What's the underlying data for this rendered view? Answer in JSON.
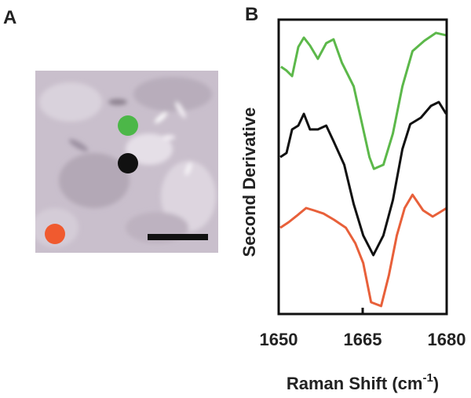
{
  "chart_data": {
    "type": "line",
    "panel_labels": [
      "A",
      "B"
    ],
    "x_label": {
      "main": "Raman Shift (cm",
      "sup": "-1",
      "end": ")"
    },
    "y_label": "Second Derivative",
    "xlim": [
      1650,
      1680
    ],
    "xticks": [
      1650,
      1665,
      1680
    ],
    "ylim": [
      0,
      100
    ],
    "series": [
      {
        "color": "#5cb84a",
        "x": [
          1650.4,
          1651.4,
          1652.4,
          1653.5,
          1654.5,
          1655.6,
          1657.0,
          1658.5,
          1659.8,
          1661.3,
          1663.4,
          1664.8,
          1666.2,
          1667.0,
          1668.7,
          1670.4,
          1672.1,
          1673.9,
          1676.0,
          1678.1,
          1679.9
        ],
        "values": [
          84.0,
          82.7,
          80.8,
          90.7,
          93.9,
          91.2,
          86.7,
          92.0,
          93.3,
          85.3,
          77.3,
          65.3,
          53.3,
          49.3,
          50.7,
          61.3,
          77.3,
          89.3,
          92.8,
          95.5,
          94.7
        ]
      },
      {
        "color": "#111111",
        "x": [
          1650.3,
          1651.4,
          1652.4,
          1653.5,
          1654.5,
          1655.6,
          1657.0,
          1658.5,
          1659.8,
          1661.7,
          1663.4,
          1665.1,
          1666.9,
          1668.7,
          1670.4,
          1672.1,
          1673.5,
          1675.4,
          1677.2,
          1678.6,
          1679.9
        ],
        "values": [
          53.3,
          54.7,
          62.7,
          64.0,
          68.0,
          62.7,
          62.7,
          64.0,
          58.7,
          50.7,
          37.3,
          26.7,
          20.0,
          26.7,
          38.7,
          56.0,
          64.5,
          66.7,
          70.7,
          72.0,
          68.0
        ]
      },
      {
        "color": "#e8603a",
        "x": [
          1650.3,
          1651.8,
          1653.2,
          1654.9,
          1656.3,
          1658.0,
          1659.9,
          1662.0,
          1663.7,
          1665.1,
          1666.5,
          1668.3,
          1669.7,
          1671.1,
          1672.5,
          1673.9,
          1675.8,
          1677.5,
          1678.9,
          1680.0
        ],
        "values": [
          29.3,
          31.2,
          33.3,
          36.0,
          35.2,
          34.1,
          32.0,
          29.3,
          24.0,
          17.3,
          4.0,
          2.7,
          13.3,
          26.7,
          36.0,
          40.5,
          35.2,
          33.1,
          34.7,
          36.0
        ]
      }
    ]
  }
}
